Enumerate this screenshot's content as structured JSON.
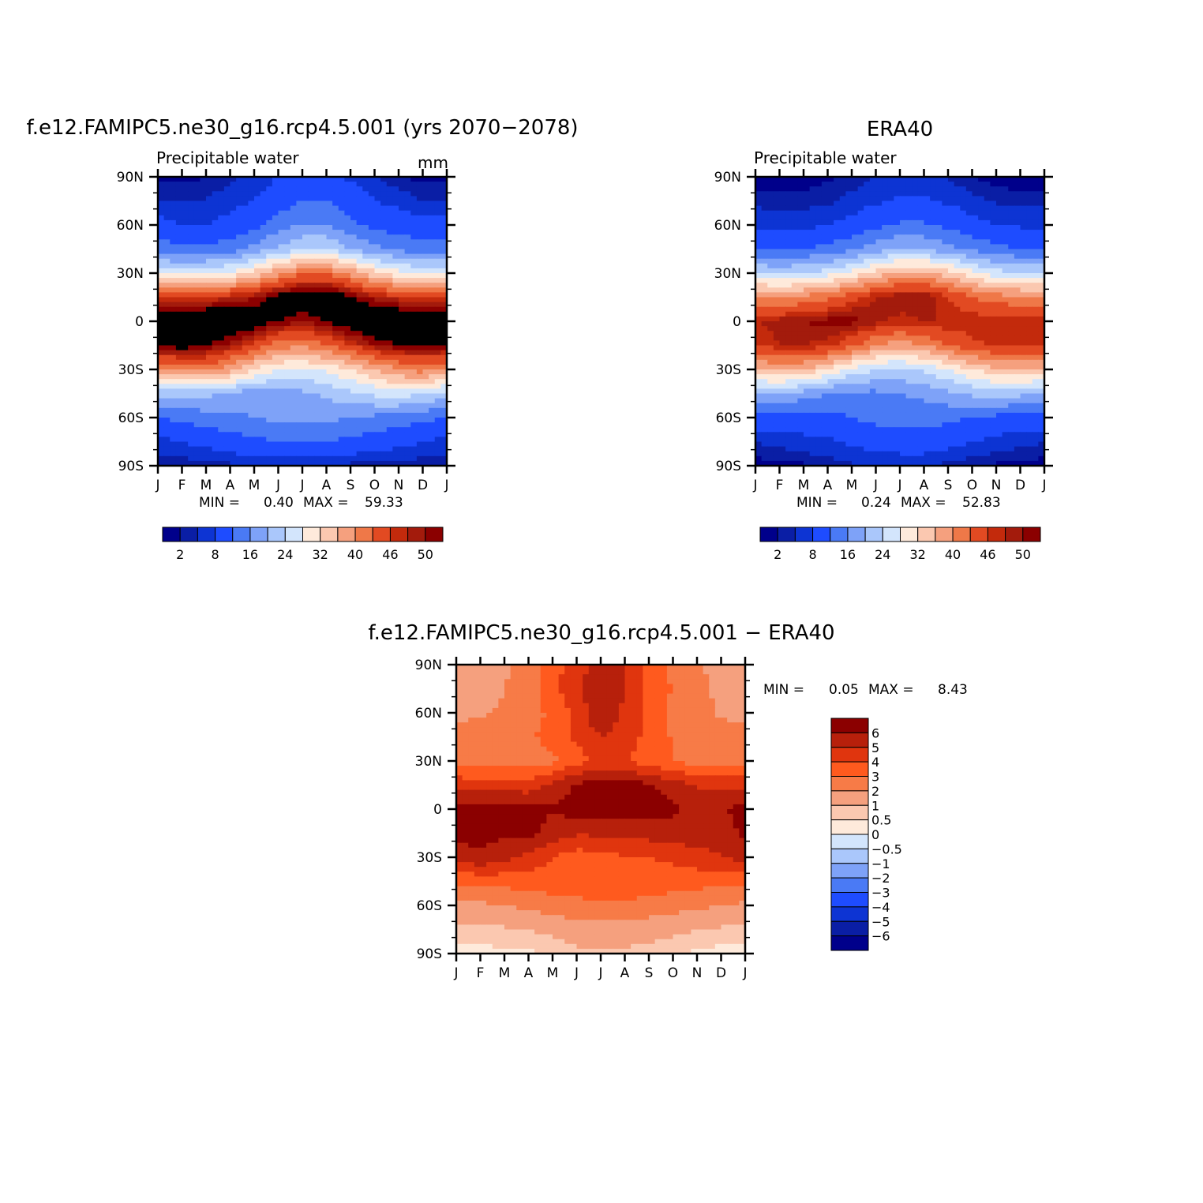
{
  "chart_data": [
    {
      "type": "heatmap",
      "id": "model",
      "title": "f.e12.FAMIPC5.ne30_g16.rcp4.5.001 (yrs 2070−2078)",
      "subtitle": "Precipitable water",
      "units": "mm",
      "x_tick_labels": [
        "J",
        "F",
        "M",
        "A",
        "M",
        "J",
        "J",
        "A",
        "S",
        "O",
        "N",
        "D",
        "J"
      ],
      "y_tick_labels": [
        "90N",
        "60N",
        "30N",
        "0",
        "30S",
        "60S",
        "90S"
      ],
      "ylim": [
        -90,
        90
      ],
      "min_label": "MIN =",
      "min": "0.40",
      "max_label": "MAX =",
      "max": "59.33",
      "colorbar_labels": [
        "2",
        "8",
        "16",
        "24",
        "32",
        "40",
        "46",
        "50"
      ],
      "levels": [
        1,
        2,
        4,
        8,
        12,
        16,
        20,
        24,
        28,
        32,
        36,
        40,
        44,
        46,
        48,
        50
      ],
      "colors": [
        "#00008b",
        "#0a1ea5",
        "#0d34d3",
        "#1e4cff",
        "#4a7af5",
        "#7ea2f8",
        "#aac7fb",
        "#d3e5fc",
        "#feeadb",
        "#fbc8b0",
        "#f5a07e",
        "#ef7848",
        "#e24a22",
        "#c32a0c",
        "#a31b0c",
        "#8b0000"
      ],
      "grid_lat": [
        -90,
        -75,
        -60,
        -45,
        -30,
        -15,
        0,
        15,
        30,
        45,
        60,
        75,
        90
      ],
      "grid_values": [
        [
          1,
          1,
          1,
          1.5,
          2,
          2,
          2,
          2,
          1.5,
          1,
          1,
          1,
          1
        ],
        [
          3,
          4,
          5,
          6,
          7,
          8,
          8,
          8,
          7,
          6,
          5,
          4,
          3
        ],
        [
          8,
          9,
          10,
          11,
          12,
          13,
          13,
          13,
          12,
          11,
          10,
          9,
          8
        ],
        [
          18,
          18,
          17,
          15,
          14,
          14,
          15,
          17,
          19,
          21,
          22,
          20,
          18
        ],
        [
          36,
          37,
          38,
          34,
          28,
          24,
          23,
          25,
          28,
          32,
          36,
          38,
          36
        ],
        [
          50,
          52,
          50,
          47,
          43,
          38,
          37,
          40,
          44,
          48,
          50,
          50,
          50
        ],
        [
          55,
          56,
          56,
          55,
          53,
          50,
          48,
          50,
          53,
          54,
          55,
          55,
          55
        ],
        [
          44,
          43,
          44,
          46,
          48,
          52,
          54,
          54,
          51,
          47,
          45,
          44,
          44
        ],
        [
          23,
          22,
          23,
          25,
          29,
          35,
          39,
          39,
          35,
          29,
          25,
          23,
          23
        ],
        [
          10,
          9,
          9,
          10,
          13,
          17,
          20,
          20,
          16,
          13,
          11,
          10,
          10
        ],
        [
          5,
          4,
          4,
          5,
          7,
          10,
          12,
          12,
          9,
          7,
          6,
          5,
          5
        ],
        [
          2,
          2,
          2,
          3,
          4,
          6,
          8,
          8,
          6,
          4,
          3,
          2,
          2
        ],
        [
          0.6,
          0.6,
          1,
          1.5,
          2.5,
          4,
          5,
          5,
          3.5,
          2,
          1,
          0.6,
          0.6
        ]
      ]
    },
    {
      "type": "heatmap",
      "id": "obs",
      "title": "ERA40",
      "subtitle": "Precipitable water",
      "x_tick_labels": [
        "J",
        "F",
        "M",
        "A",
        "M",
        "J",
        "J",
        "A",
        "S",
        "O",
        "N",
        "D",
        "J"
      ],
      "y_tick_labels": [
        "90N",
        "60N",
        "30N",
        "0",
        "30S",
        "60S",
        "90S"
      ],
      "ylim": [
        -90,
        90
      ],
      "min_label": "MIN =",
      "min": "0.24",
      "max_label": "MAX =",
      "max": "52.83",
      "colorbar_labels": [
        "2",
        "8",
        "16",
        "24",
        "32",
        "40",
        "46",
        "50"
      ],
      "levels": [
        1,
        2,
        4,
        8,
        12,
        16,
        20,
        24,
        28,
        32,
        36,
        40,
        44,
        46,
        48,
        50
      ],
      "colors": [
        "#00008b",
        "#0a1ea5",
        "#0d34d3",
        "#1e4cff",
        "#4a7af5",
        "#7ea2f8",
        "#aac7fb",
        "#d3e5fc",
        "#feeadb",
        "#fbc8b0",
        "#f5a07e",
        "#ef7848",
        "#e24a22",
        "#c32a0c",
        "#a31b0c",
        "#8b0000"
      ],
      "grid_lat": [
        -90,
        -75,
        -60,
        -45,
        -30,
        -15,
        0,
        15,
        30,
        45,
        60,
        75,
        90
      ],
      "grid_values": [
        [
          0.5,
          0.5,
          0.8,
          1.2,
          1.8,
          2,
          2,
          2,
          1.5,
          1,
          0.8,
          0.5,
          0.5
        ],
        [
          2,
          2.5,
          3,
          3.5,
          4.5,
          5.5,
          6,
          6,
          5,
          4,
          3,
          2.5,
          2
        ],
        [
          6,
          6,
          6.5,
          7,
          8,
          9,
          9.5,
          9.5,
          9,
          8,
          7,
          6,
          6
        ],
        [
          16,
          16,
          14,
          12,
          11,
          11,
          12,
          13,
          15,
          17,
          18,
          17,
          16
        ],
        [
          31,
          33,
          32,
          28,
          23,
          20,
          19,
          21,
          24,
          28,
          31,
          32,
          31
        ],
        [
          44,
          46,
          46,
          45,
          41,
          36,
          34,
          36,
          40,
          43,
          45,
          45,
          44
        ],
        [
          46,
          47,
          48,
          49,
          49,
          47,
          45,
          46,
          46,
          46,
          46,
          46,
          46
        ],
        [
          37,
          36,
          37,
          39,
          43,
          46,
          48,
          48,
          44,
          40,
          38,
          37,
          37
        ],
        [
          20,
          19,
          20,
          22,
          25,
          30,
          33,
          33,
          30,
          25,
          22,
          20,
          20
        ],
        [
          8,
          7.5,
          8,
          9,
          11,
          14,
          16,
          16,
          13,
          11,
          9,
          8,
          8
        ],
        [
          3.5,
          3,
          3,
          4,
          5,
          7,
          8.5,
          8.5,
          7,
          5,
          4,
          3.5,
          3.5
        ],
        [
          1.5,
          1.3,
          1.3,
          1.6,
          2.5,
          3.5,
          4.5,
          4.5,
          3.5,
          2.5,
          1.8,
          1.5,
          1.5
        ],
        [
          0.3,
          0.3,
          0.5,
          0.8,
          1.2,
          2,
          2.5,
          2.5,
          1.8,
          1,
          0.5,
          0.3,
          0.3
        ]
      ]
    },
    {
      "type": "heatmap",
      "id": "diff",
      "title": "f.e12.FAMIPC5.ne30_g16.rcp4.5.001 − ERA40",
      "x_tick_labels": [
        "J",
        "F",
        "M",
        "A",
        "M",
        "J",
        "J",
        "A",
        "S",
        "O",
        "N",
        "D",
        "J"
      ],
      "y_tick_labels": [
        "90N",
        "60N",
        "30N",
        "0",
        "30S",
        "60S",
        "90S"
      ],
      "ylim": [
        -90,
        90
      ],
      "min_label": "MIN =",
      "min": "0.05",
      "max_label": "MAX =",
      "max": "8.43",
      "colorbar_labels": [
        "6",
        "5",
        "4",
        "3",
        "2",
        "1",
        "0.5",
        "0",
        "−0.5",
        "−1",
        "−2",
        "−3",
        "−4",
        "−5",
        "−6"
      ],
      "levels": [
        -6,
        -5,
        -4,
        -3,
        -2,
        -1,
        -0.5,
        0,
        0.5,
        1,
        2,
        3,
        4,
        5,
        6
      ],
      "colors": [
        "#00008b",
        "#0a1ea5",
        "#0d34d3",
        "#1e4cff",
        "#4a7af5",
        "#7ea2f8",
        "#aac7fb",
        "#d3e5fc",
        "#feeadb",
        "#fbc8b0",
        "#f5a07e",
        "#f77b47",
        "#ff5a1e",
        "#e0350e",
        "#b7200b",
        "#8b0000"
      ],
      "grid_lat": [
        -90,
        -75,
        -60,
        -45,
        -30,
        -15,
        0,
        15,
        30,
        45,
        60,
        75,
        90
      ],
      "grid_values": [
        [
          0.3,
          0.3,
          0.4,
          0.4,
          0.6,
          0.8,
          0.8,
          0.8,
          0.7,
          0.6,
          0.4,
          0.3,
          0.3
        ],
        [
          0.8,
          0.8,
          0.9,
          1,
          1.2,
          1.5,
          1.6,
          1.6,
          1.4,
          1.2,
          1,
          0.9,
          0.8
        ],
        [
          1.8,
          1.8,
          2,
          2.2,
          2.5,
          2.8,
          2.8,
          2.8,
          2.6,
          2.4,
          2.2,
          2,
          1.8
        ],
        [
          3.2,
          3.3,
          3.4,
          3.5,
          3.6,
          3.4,
          3.6,
          3.8,
          3.6,
          3.5,
          3.4,
          3.3,
          3.2
        ],
        [
          5.4,
          5.8,
          5.3,
          4.6,
          4,
          3.5,
          3.6,
          3.9,
          4,
          4.2,
          4.6,
          5,
          5.4
        ],
        [
          6.3,
          6.4,
          6.2,
          6.3,
          5.6,
          5.1,
          5.2,
          5.3,
          5.4,
          5.6,
          5.6,
          5.3,
          6.3
        ],
        [
          6.6,
          6.7,
          6.6,
          6.2,
          6.1,
          6.5,
          6.6,
          6.7,
          6.4,
          6.2,
          5.6,
          5.8,
          6.6
        ],
        [
          4.6,
          4.3,
          4.6,
          4.4,
          5.2,
          6.2,
          6.5,
          6.5,
          6.2,
          5.5,
          4.9,
          4.7,
          4.6
        ],
        [
          2.8,
          2.7,
          2.6,
          2.5,
          2.8,
          3.5,
          4.2,
          4.1,
          3.4,
          3,
          2.6,
          2.4,
          2.8
        ],
        [
          2.3,
          2.5,
          2.6,
          2.8,
          3.4,
          4.3,
          5,
          4.6,
          3.7,
          2.9,
          2.4,
          2.3,
          2.3
        ],
        [
          1.8,
          1.9,
          2.1,
          2.6,
          3.2,
          4.4,
          5.8,
          4.8,
          3.6,
          2.8,
          2.2,
          1.9,
          1.8
        ],
        [
          1.6,
          1.7,
          2,
          2.6,
          3.6,
          4.8,
          5.6,
          5,
          3.8,
          2.9,
          2.3,
          1.8,
          1.6
        ],
        [
          1.4,
          1.6,
          1.8,
          2.4,
          3.6,
          4.6,
          5.4,
          5,
          3.8,
          2.8,
          2.1,
          1.7,
          1.4
        ]
      ]
    }
  ]
}
